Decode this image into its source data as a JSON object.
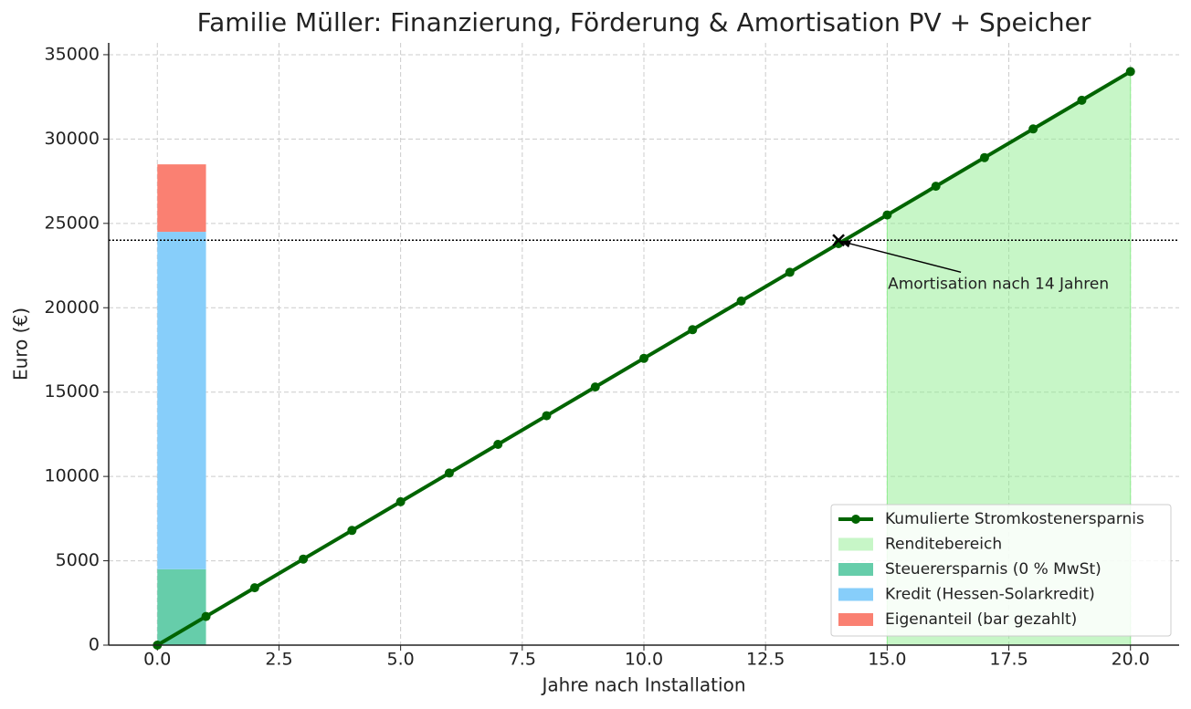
{
  "chart_data": {
    "type": "line",
    "title": "Familie Müller: Finanzierung, Förderung & Amortisation PV + Speicher",
    "x_label": "Jahre nach Installation",
    "y_label": "Euro (€)",
    "x": [
      0,
      1,
      2,
      3,
      4,
      5,
      6,
      7,
      8,
      9,
      10,
      11,
      12,
      13,
      14,
      15,
      16,
      17,
      18,
      19,
      20
    ],
    "xlim": [
      -1,
      21
    ],
    "xticks": [
      {
        "value": 0,
        "label": "0.0"
      },
      {
        "value": 2.5,
        "label": "2.5"
      },
      {
        "value": 5,
        "label": "5.0"
      },
      {
        "value": 7.5,
        "label": "7.5"
      },
      {
        "value": 10,
        "label": "10.0"
      },
      {
        "value": 12.5,
        "label": "12.5"
      },
      {
        "value": 15,
        "label": "15.0"
      },
      {
        "value": 17.5,
        "label": "17.5"
      },
      {
        "value": 20,
        "label": "20.0"
      }
    ],
    "ylim": [
      0,
      35700
    ],
    "yticks": [
      0,
      5000,
      10000,
      15000,
      20000,
      25000,
      30000,
      35000
    ],
    "grid": true,
    "legend": "lower right",
    "series": [
      {
        "name": "Kumulierte Stromkostenersparnis",
        "color": "#006400",
        "values": [
          0,
          1700,
          3400,
          5100,
          6800,
          8500,
          10200,
          11900,
          13600,
          15300,
          17000,
          18700,
          20400,
          22100,
          23800,
          25500,
          27200,
          28900,
          30600,
          32300,
          34000
        ]
      }
    ],
    "area": {
      "name": "Renditebereich",
      "color": "#90ee90",
      "from_x": 15
    },
    "bars": {
      "x_edges": [
        0,
        1
      ],
      "series": [
        {
          "name": "Steuerersparnis (0 % MwSt)",
          "color": "#66cdaa",
          "values": [
            4500
          ]
        },
        {
          "name": "Kredit (Hessen-Solarkredit)",
          "color": "#87cefa",
          "values": [
            20000
          ]
        },
        {
          "name": "Eigenanteil (bar gezahlt)",
          "color": "#fa8072",
          "values": [
            4000
          ]
        }
      ]
    },
    "hline": 24000,
    "annotation": {
      "text": "Amortisation nach 14 Jahren",
      "x": 14,
      "y": 24000
    }
  }
}
